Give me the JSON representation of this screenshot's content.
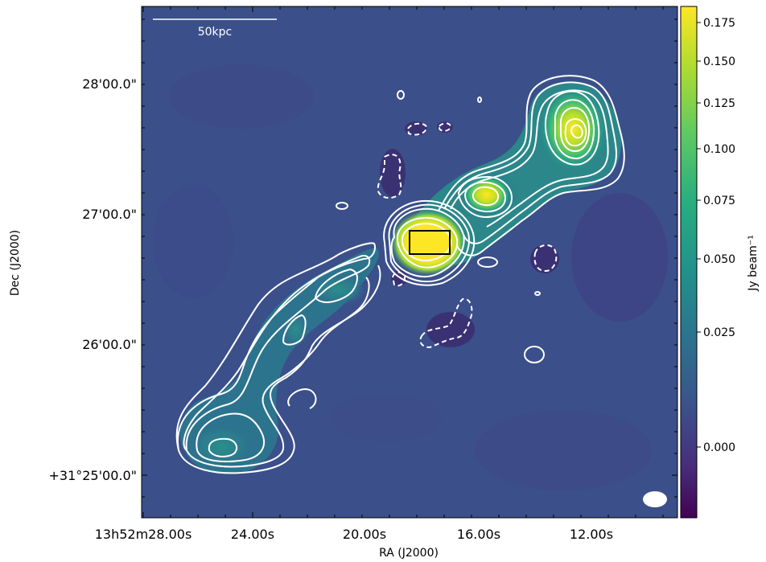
{
  "figure": {
    "x_axis_label": "RA (J2000)",
    "y_axis_label": "Dec (J2000)",
    "x_ticks": [
      "13h52m28.00s",
      "24.00s",
      "20.00s",
      "16.00s",
      "12.00s"
    ],
    "y_ticks": [
      "28'00.0\"",
      "27'00.0\"",
      "26'00.0\"",
      "+31°25'00.0\""
    ],
    "scalebar_label": "50kpc",
    "colorbar": {
      "label": "Jy beam⁻¹",
      "ticks": [
        "0.175",
        "0.150",
        "0.125",
        "0.100",
        "0.075",
        "0.050",
        "0.025",
        "0.000"
      ],
      "colormap": "viridis",
      "scale": "nonlinear (arcsinh-like)"
    },
    "colors": {
      "background": "#3a4f8c",
      "contour_positive": "#ffffff",
      "contour_negative": "#ffffff",
      "core_box": "#000000",
      "beam": "#ffffff"
    }
  }
}
